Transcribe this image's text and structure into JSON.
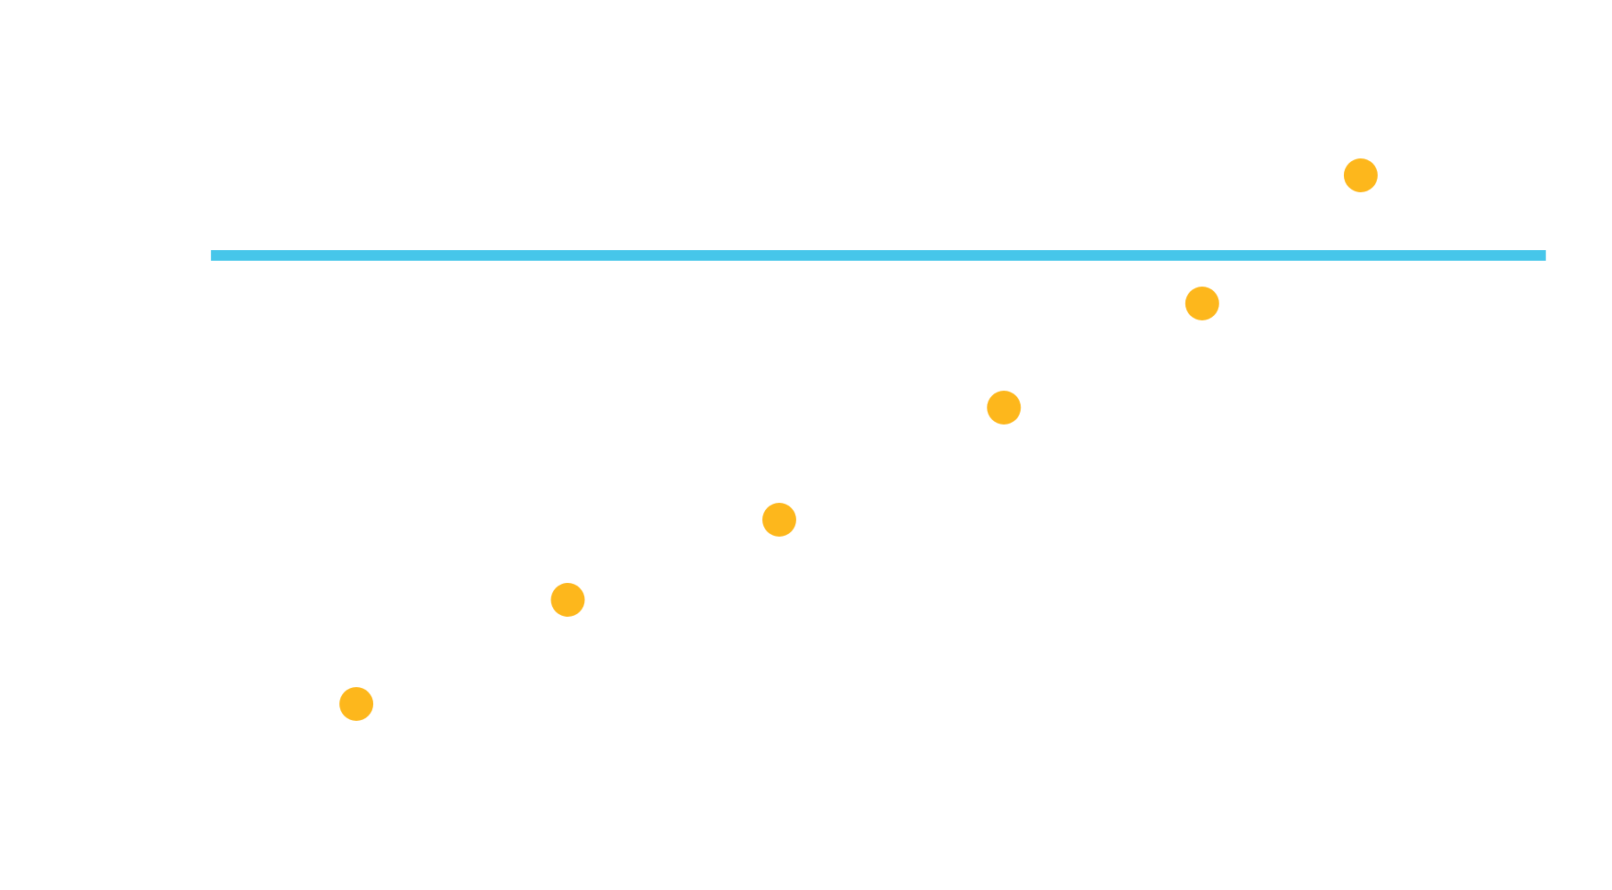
{
  "chart_data": {
    "type": "scatter",
    "title": "",
    "xlabel": "",
    "ylabel": "",
    "grid": false,
    "legend": "none",
    "xlim": [
      0,
      10
    ],
    "ylim": [
      0,
      10
    ],
    "series": [
      {
        "kind": "points",
        "color": "#fdb71c",
        "marker": "circle",
        "points": [
          {
            "x": 1.2,
            "y": 2.1
          },
          {
            "x": 2.8,
            "y": 3.4
          },
          {
            "x": 4.4,
            "y": 4.4
          },
          {
            "x": 6.1,
            "y": 5.8
          },
          {
            "x": 7.6,
            "y": 7.1
          },
          {
            "x": 8.8,
            "y": 8.7
          }
        ]
      },
      {
        "kind": "reference-line",
        "orientation": "horizontal",
        "color": "#46c6ea",
        "y": 7.7,
        "x_start": 0.1,
        "x_end": 10.2
      }
    ]
  }
}
